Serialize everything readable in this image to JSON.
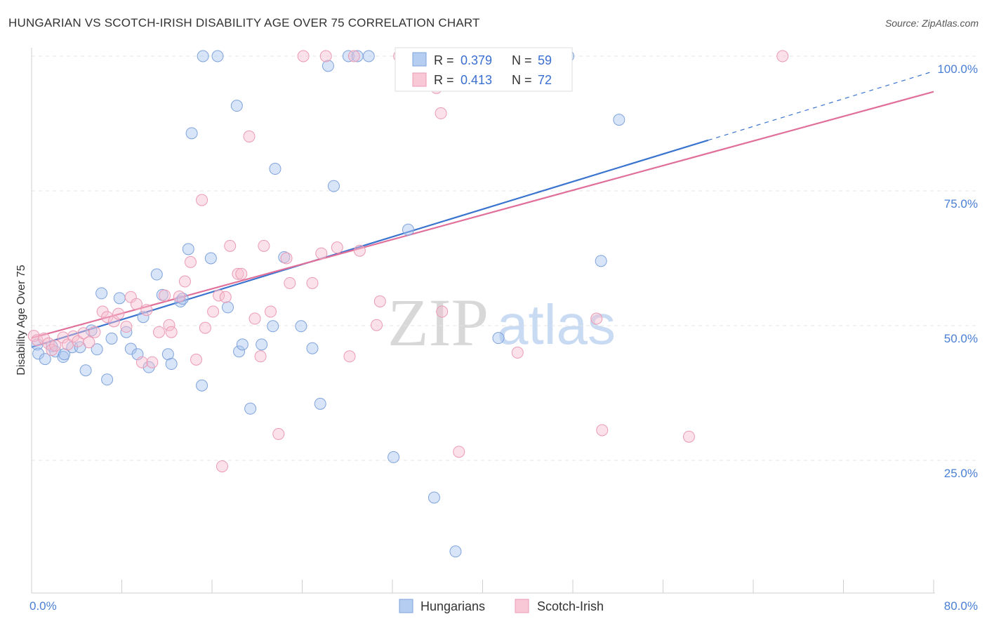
{
  "chart_data": {
    "type": "scatter",
    "title": "HUNGARIAN VS SCOTCH-IRISH DISABILITY AGE OVER 75 CORRELATION CHART",
    "source": "Source: ZipAtlas.com",
    "ylabel": "Disability Age Over 75",
    "x_tick_labels": [
      "0.0%",
      "80.0%"
    ],
    "y_tick_labels": [
      "100.0%",
      "75.0%",
      "50.0%",
      "25.0%"
    ],
    "y_ticks": [
      100,
      75,
      50,
      25
    ],
    "xlim": [
      0,
      80
    ],
    "ylim": [
      0,
      100
    ],
    "grid": true,
    "legend_placement": "top-center",
    "watermark": {
      "zip": "ZIP",
      "atlas": "atlas"
    },
    "stats": [
      {
        "r_label": "R =",
        "r_value": "0.379",
        "n_label": "N =",
        "n_value": "59"
      },
      {
        "r_label": "R =",
        "r_value": "0.413",
        "n_label": "N =",
        "n_value": "72"
      }
    ],
    "series": [
      {
        "name": "Hungarians",
        "color": "#a9c4ee",
        "stroke": "#7fa3dc",
        "line_color": "#3a74cf",
        "trend": {
          "x0": 0,
          "y0": 46.0,
          "x1": 60,
          "y1": 84.4,
          "dash_to_x": 80,
          "dash_to_y": 97.2
        },
        "points": [
          [
            0.5,
            46.5
          ],
          [
            0.6,
            44.8
          ],
          [
            1.2,
            43.8
          ],
          [
            1.8,
            46.2
          ],
          [
            2.1,
            45.2
          ],
          [
            2.8,
            44.2
          ],
          [
            2.9,
            44.7
          ],
          [
            3.6,
            46.0
          ],
          [
            4.3,
            46.0
          ],
          [
            4.8,
            41.7
          ],
          [
            5.3,
            49.1
          ],
          [
            5.8,
            45.6
          ],
          [
            6.2,
            56.0
          ],
          [
            6.7,
            40.0
          ],
          [
            7.1,
            47.6
          ],
          [
            7.8,
            55.1
          ],
          [
            8.4,
            48.8
          ],
          [
            8.8,
            45.7
          ],
          [
            9.4,
            44.7
          ],
          [
            9.9,
            51.6
          ],
          [
            10.4,
            42.3
          ],
          [
            11.1,
            59.5
          ],
          [
            11.6,
            55.7
          ],
          [
            12.1,
            44.7
          ],
          [
            12.4,
            42.9
          ],
          [
            13.2,
            54.5
          ],
          [
            13.4,
            55.0
          ],
          [
            13.9,
            64.2
          ],
          [
            14.2,
            85.7
          ],
          [
            15.2,
            100
          ],
          [
            15.1,
            38.9
          ],
          [
            15.9,
            62.5
          ],
          [
            16.5,
            100
          ],
          [
            17.4,
            53.4
          ],
          [
            18.2,
            90.8
          ],
          [
            18.4,
            45.2
          ],
          [
            18.7,
            46.5
          ],
          [
            19.4,
            34.6
          ],
          [
            20.4,
            46.5
          ],
          [
            21.4,
            49.9
          ],
          [
            21.6,
            79.1
          ],
          [
            22.4,
            62.7
          ],
          [
            23.9,
            49.9
          ],
          [
            24.9,
            45.8
          ],
          [
            25.6,
            35.5
          ],
          [
            26.3,
            98.2
          ],
          [
            26.8,
            75.9
          ],
          [
            28.1,
            100
          ],
          [
            28.9,
            100
          ],
          [
            29.9,
            100
          ],
          [
            32.1,
            25.6
          ],
          [
            33.1,
            100
          ],
          [
            33.4,
            67.8
          ],
          [
            35.7,
            18.1
          ],
          [
            37.6,
            8.1
          ],
          [
            41.4,
            47.7
          ],
          [
            47.6,
            100
          ],
          [
            50.5,
            62.0
          ],
          [
            52.1,
            88.2
          ]
        ]
      },
      {
        "name": "Scotch-Irish",
        "color": "#f6bfd0",
        "stroke": "#eb9ab4",
        "line_color": "#e0709a",
        "trend": {
          "x0": 0,
          "y0": 47.7,
          "x1": 80,
          "y1": 93.4
        },
        "points": [
          [
            0.2,
            48.1
          ],
          [
            0.5,
            47.3
          ],
          [
            1.1,
            47.6
          ],
          [
            1.5,
            46.7
          ],
          [
            1.8,
            45.5
          ],
          [
            2.1,
            46.3
          ],
          [
            2.8,
            47.8
          ],
          [
            3.2,
            46.5
          ],
          [
            3.7,
            48.0
          ],
          [
            4.1,
            47.1
          ],
          [
            4.6,
            48.6
          ],
          [
            5.1,
            46.9
          ],
          [
            5.6,
            48.8
          ],
          [
            6.3,
            52.6
          ],
          [
            6.7,
            51.6
          ],
          [
            7.3,
            50.8
          ],
          [
            7.7,
            52.2
          ],
          [
            8.4,
            49.8
          ],
          [
            8.8,
            55.3
          ],
          [
            9.3,
            54.0
          ],
          [
            9.8,
            43.2
          ],
          [
            10.2,
            52.9
          ],
          [
            10.7,
            43.2
          ],
          [
            11.3,
            48.8
          ],
          [
            11.8,
            55.6
          ],
          [
            12.2,
            50.1
          ],
          [
            12.4,
            48.8
          ],
          [
            13.1,
            55.4
          ],
          [
            13.6,
            58.2
          ],
          [
            14.1,
            61.8
          ],
          [
            14.6,
            43.7
          ],
          [
            15.1,
            73.3
          ],
          [
            15.4,
            49.6
          ],
          [
            16.1,
            52.6
          ],
          [
            16.6,
            55.6
          ],
          [
            16.9,
            23.9
          ],
          [
            17.2,
            55.3
          ],
          [
            17.6,
            64.8
          ],
          [
            18.3,
            59.6
          ],
          [
            18.6,
            59.6
          ],
          [
            19.3,
            85.1
          ],
          [
            19.8,
            51.3
          ],
          [
            20.3,
            44.3
          ],
          [
            20.6,
            64.8
          ],
          [
            21.2,
            52.6
          ],
          [
            21.9,
            29.9
          ],
          [
            22.6,
            62.5
          ],
          [
            22.9,
            57.9
          ],
          [
            24.1,
            100
          ],
          [
            24.9,
            57.9
          ],
          [
            25.7,
            63.4
          ],
          [
            26.1,
            100
          ],
          [
            27.1,
            64.5
          ],
          [
            28.2,
            44.3
          ],
          [
            28.6,
            100
          ],
          [
            29.1,
            63.9
          ],
          [
            30.6,
            50.1
          ],
          [
            30.9,
            54.5
          ],
          [
            32.6,
            100
          ],
          [
            35.9,
            94.1
          ],
          [
            36.3,
            89.4
          ],
          [
            36.4,
            52.6
          ],
          [
            36.8,
            100
          ],
          [
            37.9,
            26.6
          ],
          [
            38.4,
            100
          ],
          [
            39.9,
            100
          ],
          [
            42.4,
            100
          ],
          [
            43.1,
            45.0
          ],
          [
            50.1,
            51.3
          ],
          [
            50.6,
            30.6
          ],
          [
            58.3,
            29.4
          ],
          [
            66.6,
            100
          ]
        ]
      }
    ]
  }
}
